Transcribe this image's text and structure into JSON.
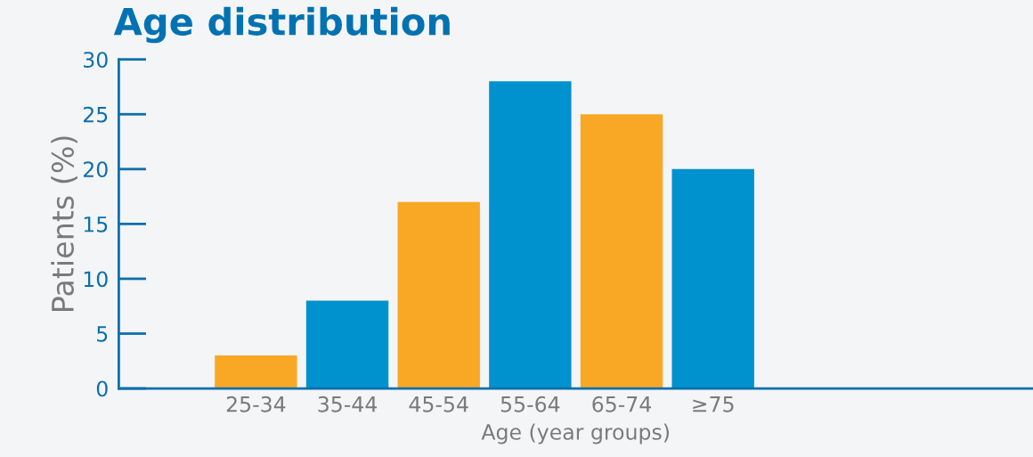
{
  "chart_data": {
    "type": "bar",
    "title": "Age distribution",
    "xlabel": "Age (year groups)",
    "ylabel": "Patients (%)",
    "categories": [
      "25-34",
      "35-44",
      "45-54",
      "55-64",
      "65-74",
      "≥75"
    ],
    "values": [
      3,
      8,
      17,
      28,
      25,
      20
    ],
    "colors": [
      "#f9a825",
      "#0091cf",
      "#f9a825",
      "#0091cf",
      "#f9a825",
      "#0091cf"
    ],
    "ylim": [
      0,
      30
    ],
    "yticks": [
      0,
      5,
      10,
      15,
      20,
      25,
      30
    ],
    "grid": false,
    "legend": false
  }
}
